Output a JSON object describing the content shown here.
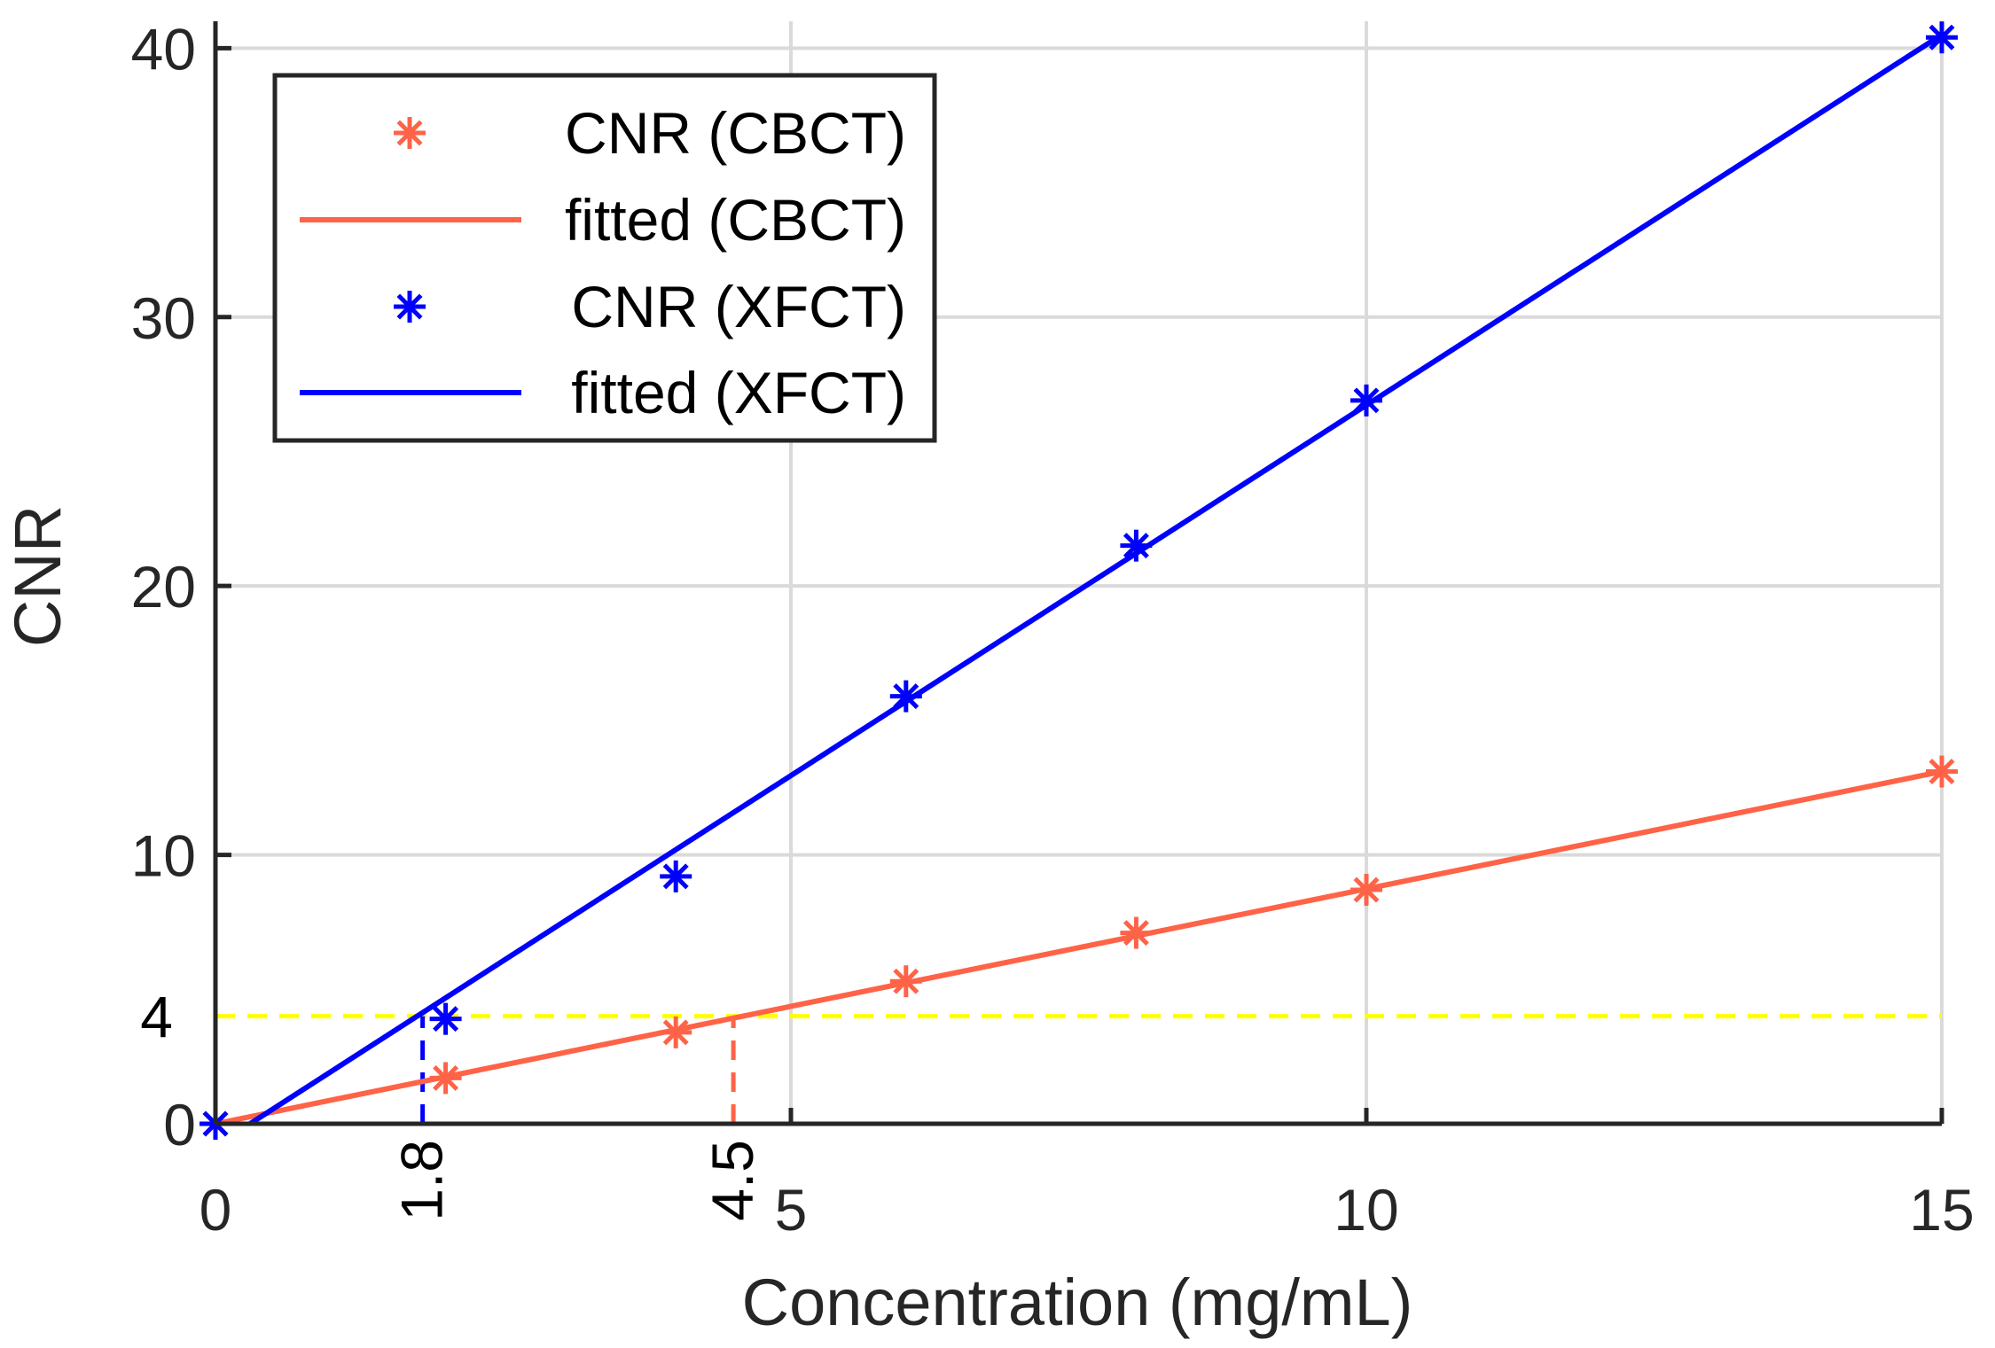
{
  "chart_data": {
    "type": "line",
    "title": "",
    "xlabel": "Concentration (mg/mL)",
    "ylabel": "CNR",
    "xlim": [
      0,
      15
    ],
    "ylim": [
      0,
      41
    ],
    "grid": true,
    "legend_position": "top-left",
    "x_ticks": [
      {
        "value": 0,
        "label": "0"
      },
      {
        "value": 5,
        "label": "5"
      },
      {
        "value": 10,
        "label": "10"
      },
      {
        "value": 15,
        "label": "15"
      }
    ],
    "y_ticks": [
      {
        "value": 0,
        "label": "0"
      },
      {
        "value": 10,
        "label": "10"
      },
      {
        "value": 20,
        "label": "20"
      },
      {
        "value": 30,
        "label": "30"
      },
      {
        "value": 40,
        "label": "40"
      }
    ],
    "series": [
      {
        "name": "CNR (CBCT)",
        "kind": "markers",
        "marker": "asterisk",
        "color": "#ff6347",
        "x": [
          0,
          2,
          4,
          6,
          8,
          10,
          15
        ],
        "y": [
          0,
          1.7,
          3.4,
          5.3,
          7.1,
          8.7,
          13.1
        ]
      },
      {
        "name": "fitted (CBCT)",
        "kind": "line",
        "color": "#ff6347",
        "x": [
          0,
          15
        ],
        "y": [
          0,
          13.1
        ]
      },
      {
        "name": "CNR (XFCT)",
        "kind": "markers",
        "marker": "asterisk",
        "color": "#0000ff",
        "x": [
          0,
          2,
          4,
          6,
          8,
          10,
          15
        ],
        "y": [
          0,
          3.9,
          9.2,
          15.9,
          21.5,
          26.9,
          40.4
        ]
      },
      {
        "name": "fitted (XFCT)",
        "kind": "line",
        "color": "#0000ff",
        "x": [
          0.3,
          15
        ],
        "y": [
          0,
          40.5
        ]
      }
    ],
    "annotations": [
      {
        "type": "hline",
        "y": 4,
        "color": "#ffff00",
        "style": "dashed",
        "x_range": [
          0,
          15
        ],
        "label": "4"
      },
      {
        "type": "vline",
        "x": 1.8,
        "color": "#0000ff",
        "style": "dashed",
        "y_range": [
          0,
          4
        ],
        "label": "1.8"
      },
      {
        "type": "vline",
        "x": 4.5,
        "color": "#ff6347",
        "style": "dashed",
        "y_range": [
          0,
          4
        ],
        "label": "4.5"
      }
    ]
  }
}
